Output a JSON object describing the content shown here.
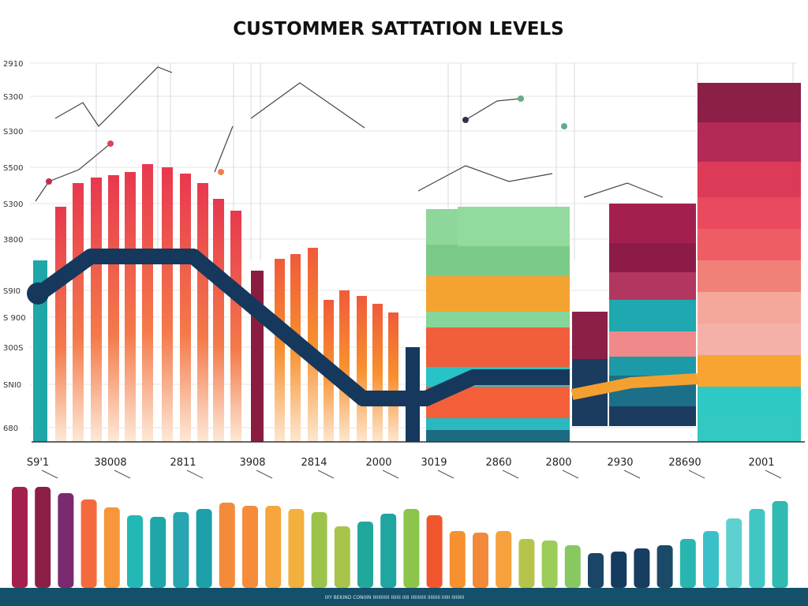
{
  "title": "CUSTOMMER SATTATION LEVELS",
  "y_labels": [
    "2910",
    "S300",
    "S300",
    "S500",
    "S300",
    "3800",
    "S9I0",
    "S 900",
    "300S",
    "SNI0",
    "680"
  ],
  "x_labels": [
    "S9'1",
    "38008",
    "2811",
    "3908",
    "2814",
    "2000",
    "3019",
    "2860",
    "2800",
    "2930",
    "28690",
    "2001"
  ],
  "footer": "IIIY BEKIND CONIIIN IIIIIIIIIIII IIIIIII IIIII IIIIIIIIIII IIIIIIIII IIIIII IIIIIIIII"
}
